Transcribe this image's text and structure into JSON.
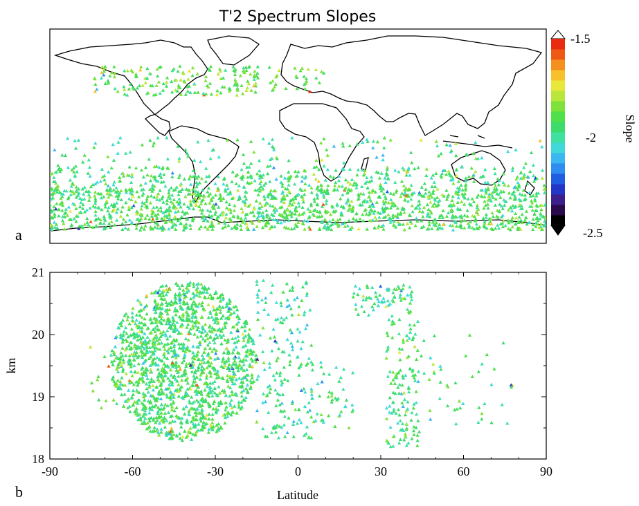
{
  "title": "T'2 Spectrum Slopes",
  "panel_a_label": "a",
  "panel_b_label": "b",
  "colorbar": {
    "label": "Slope",
    "ticks": [
      "-1.5",
      "-2",
      "-2.5"
    ],
    "range": [
      -2.5,
      -1.5
    ],
    "colors": [
      "#000000",
      "#2a0a4d",
      "#3b1f8c",
      "#2436c8",
      "#1f5ee0",
      "#2d8df0",
      "#3bb8f2",
      "#40d8d8",
      "#3fe0a0",
      "#3ddc6a",
      "#4fe04a",
      "#7fe23a",
      "#b8e63a",
      "#e8e83a",
      "#f6c12a",
      "#f4901e",
      "#ee5a16",
      "#e82a10"
    ]
  },
  "chart_data": [
    {
      "type": "scatter",
      "title": "T'2 Spectrum Slopes",
      "xlabel": "",
      "ylabel": "",
      "note_axes": "map panel: longitude/latitude, no printed ticks",
      "xlim": [
        -180,
        180
      ],
      "ylim": [
        -72,
        90
      ],
      "color_variable": "Slope",
      "clusters": [
        {
          "lon_range": [
            -180,
            180
          ],
          "lat_range": [
            -62,
            -30
          ],
          "count": 1400,
          "slope_mean": -1.95
        },
        {
          "lon_range": [
            -180,
            180
          ],
          "lat_range": [
            -30,
            -14
          ],
          "count": 360,
          "slope_mean": -1.97
        },
        {
          "lon_range": [
            -180,
            180
          ],
          "lat_range": [
            -14,
            8
          ],
          "count": 120,
          "slope_mean": -2.0
        },
        {
          "lon_range": [
            -150,
            -30
          ],
          "lat_range": [
            40,
            62
          ],
          "count": 160,
          "slope_mean": -1.9
        },
        {
          "lon_range": [
            -50,
            20
          ],
          "lat_range": [
            40,
            62
          ],
          "count": 45,
          "slope_mean": -1.9
        }
      ]
    },
    {
      "type": "scatter",
      "title": "",
      "xlabel": "Latitude",
      "ylabel": "km",
      "xlim": [
        -90,
        90
      ],
      "ylim": [
        18,
        21
      ],
      "xticks": [
        "-90",
        "-60",
        "-30",
        "0",
        "30",
        "60",
        "90"
      ],
      "yticks": [
        "18",
        "19",
        "20",
        "21"
      ],
      "color_variable": "Slope",
      "clusters": [
        {
          "lat_range": [
            -68,
            -15
          ],
          "km_range": [
            18.3,
            20.85
          ],
          "count": 2100,
          "slope_mean": -1.96
        },
        {
          "lat_range": [
            -15,
            5
          ],
          "km_range": [
            18.3,
            20.9
          ],
          "count": 180,
          "slope_mean": -2.02
        },
        {
          "lat_range": [
            5,
            20
          ],
          "km_range": [
            18.4,
            19.6
          ],
          "count": 45,
          "slope_mean": -1.98
        },
        {
          "lat_range": [
            20,
            42
          ],
          "km_range": [
            20.3,
            20.8
          ],
          "count": 70,
          "slope_mean": -2.0
        },
        {
          "lat_range": [
            32,
            44
          ],
          "km_range": [
            18.2,
            20.3
          ],
          "count": 140,
          "slope_mean": -1.97
        },
        {
          "lat_range": [
            44,
            78
          ],
          "km_range": [
            18.5,
            20.0
          ],
          "count": 45,
          "slope_mean": -1.97
        },
        {
          "lat_range": [
            -78,
            -65
          ],
          "km_range": [
            18.6,
            19.8
          ],
          "count": 15,
          "slope_mean": -1.9
        }
      ]
    }
  ]
}
